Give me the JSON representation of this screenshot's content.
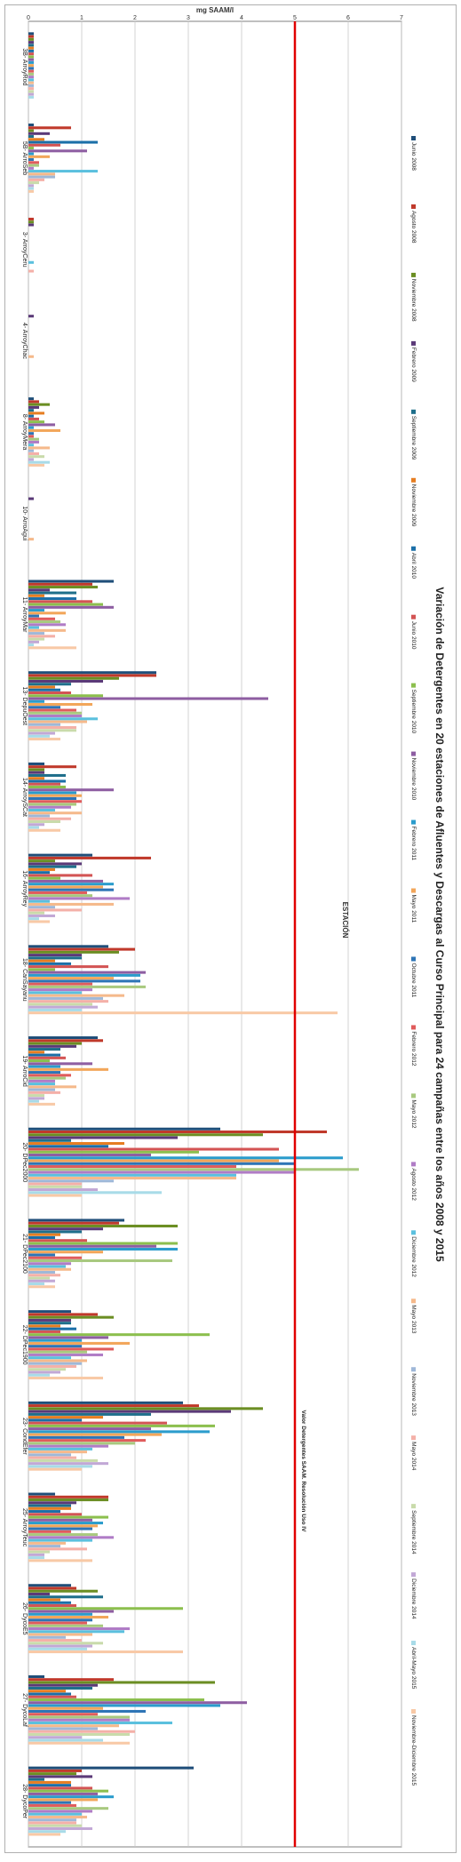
{
  "chart_data": {
    "type": "bar",
    "orientation": "horizontal",
    "title": "Variación de Detergentes en 20 estaciones de Afluentes y Descargas al Curso Principal para 24 campañas entre los años 2008 y 2015",
    "xlabel": "mg SAAM/l",
    "ylabel": "ESTACIÓN",
    "xlim": [
      0,
      7
    ],
    "xticks": [
      0,
      1,
      2,
      3,
      4,
      5,
      6,
      7
    ],
    "grid": true,
    "legend_position": "right",
    "reference_line": {
      "value": 5,
      "label": "Valor Detergentes SAAM. Resolución Uso IV",
      "color": "#e00000"
    },
    "categories": [
      "3B- ArroyRod",
      "5B- ArroSeb",
      "3- ArroyCeru",
      "4- ArroyChac",
      "8- ArroyMera",
      "10- ArroAgui",
      "11- ArroyMar",
      "13- DepuOest",
      "14- ArroySCat",
      "16- ArroyRey",
      "18- CanSayanu",
      "19- ArroCid",
      "20- DPec2000",
      "21- DPec2100",
      "22- DPec1900",
      "23- CondEfer",
      "25- ArroyTeuc",
      "26- DycoE5",
      "27- DycoLaf",
      "28- DycoPer"
    ],
    "series": [
      {
        "name": "Junio 2008",
        "color": "#1f4e79",
        "values": [
          0.1,
          0.1,
          0.0,
          0.0,
          0.1,
          0.0,
          1.6,
          2.4,
          0.3,
          1.2,
          1.5,
          1.3,
          3.6,
          1.8,
          0.8,
          2.9,
          0.5,
          0.8,
          0.3,
          3.1
        ]
      },
      {
        "name": "Agosto 2008",
        "color": "#c0392b",
        "values": [
          0.1,
          0.8,
          0.1,
          0.0,
          0.2,
          0.0,
          1.2,
          2.4,
          0.9,
          2.3,
          2.0,
          1.4,
          5.6,
          1.7,
          1.3,
          3.2,
          1.5,
          0.9,
          1.6,
          1.0
        ]
      },
      {
        "name": "Noviembre 2008",
        "color": "#6b8e23",
        "values": [
          0.1,
          0.1,
          0.1,
          0.0,
          0.4,
          0.0,
          1.3,
          1.7,
          0.3,
          0.5,
          1.7,
          1.0,
          4.4,
          2.8,
          1.6,
          4.4,
          1.5,
          1.3,
          3.5,
          0.9
        ]
      },
      {
        "name": "Febrero 2009",
        "color": "#5b3a78",
        "values": [
          0.1,
          0.4,
          0.1,
          0.1,
          0.2,
          0.1,
          0.4,
          1.4,
          0.3,
          1.0,
          1.0,
          0.9,
          2.8,
          1.4,
          0.8,
          3.8,
          0.9,
          0.4,
          1.3,
          1.2
        ]
      },
      {
        "name": "Septiembre 2009",
        "color": "#1f6f8b",
        "values": [
          0.1,
          0.1,
          0.0,
          0.0,
          0.1,
          0.0,
          0.9,
          0.8,
          0.7,
          0.9,
          1.0,
          0.6,
          0.8,
          1.0,
          0.8,
          2.3,
          0.8,
          1.4,
          1.2,
          0.3
        ]
      },
      {
        "name": "Noviembre 2009",
        "color": "#e67e22",
        "values": [
          0.1,
          0.3,
          0.0,
          0.0,
          0.3,
          0.0,
          0.3,
          0.5,
          0.3,
          0.5,
          0.5,
          0.3,
          1.8,
          0.6,
          0.6,
          1.4,
          0.8,
          0.6,
          0.7,
          0.8
        ]
      },
      {
        "name": "Abril 2010",
        "color": "#1b6fa8",
        "values": [
          0.1,
          1.3,
          0.0,
          0.0,
          0.1,
          0.0,
          0.9,
          0.6,
          0.7,
          0.4,
          0.8,
          0.6,
          1.5,
          0.5,
          0.9,
          1.0,
          0.6,
          0.8,
          0.8,
          0.8
        ]
      },
      {
        "name": "Junio 2010",
        "color": "#d35454",
        "values": [
          0.1,
          0.6,
          0.0,
          0.0,
          0.2,
          0.0,
          1.2,
          0.8,
          0.6,
          1.2,
          1.5,
          0.7,
          4.7,
          1.1,
          0.6,
          2.6,
          1.0,
          0.9,
          0.9,
          1.2
        ]
      },
      {
        "name": "Septiembre 2010",
        "color": "#8cbf4e",
        "values": [
          0.1,
          0.1,
          0.0,
          0.0,
          0.3,
          0.0,
          1.4,
          1.4,
          0.7,
          0.6,
          0.5,
          0.4,
          3.2,
          2.8,
          3.4,
          3.5,
          1.5,
          2.9,
          3.3,
          1.5
        ]
      },
      {
        "name": "Noviembre 2010",
        "color": "#8e5ea2",
        "values": [
          0.1,
          1.1,
          0.0,
          0.0,
          0.5,
          0.0,
          1.6,
          4.5,
          1.6,
          1.4,
          2.2,
          1.2,
          2.3,
          2.4,
          1.5,
          2.3,
          1.2,
          1.6,
          4.1,
          1.3
        ]
      },
      {
        "name": "Febrero 2011",
        "color": "#2b9ccc",
        "values": [
          0.1,
          0.1,
          0.0,
          0.0,
          0.1,
          0.0,
          0.3,
          0.3,
          0.9,
          1.6,
          2.1,
          0.6,
          5.9,
          2.8,
          1.0,
          3.4,
          1.4,
          1.2,
          3.6,
          1.6
        ]
      },
      {
        "name": "Mayo 2011",
        "color": "#f2a65a",
        "values": [
          0.1,
          0.4,
          0.0,
          0.0,
          0.6,
          0.0,
          0.7,
          1.2,
          1.0,
          1.4,
          1.6,
          1.5,
          4.7,
          1.4,
          1.9,
          2.5,
          1.3,
          1.5,
          1.4,
          1.3
        ]
      },
      {
        "name": "Octubre 2011",
        "color": "#2e75b6",
        "values": [
          0.1,
          0.1,
          0.0,
          0.0,
          0.1,
          0.0,
          0.2,
          0.6,
          0.9,
          1.6,
          2.1,
          0.6,
          5.0,
          0.5,
          1.0,
          1.8,
          1.2,
          1.2,
          2.2,
          0.8
        ]
      },
      {
        "name": "Febrero 2012",
        "color": "#e05c5c",
        "values": [
          0.1,
          0.2,
          0.0,
          0.0,
          0.1,
          0.0,
          0.5,
          0.9,
          1.0,
          1.1,
          1.2,
          0.8,
          3.9,
          1.0,
          1.6,
          2.2,
          0.8,
          1.1,
          1.3,
          0.9
        ]
      },
      {
        "name": "Mayo 2012",
        "color": "#a8c97f",
        "values": [
          0.1,
          0.2,
          0.0,
          0.0,
          0.2,
          0.0,
          0.6,
          1.0,
          0.9,
          1.2,
          2.2,
          0.7,
          6.2,
          2.7,
          1.1,
          2.0,
          1.3,
          1.4,
          1.9,
          1.5
        ]
      },
      {
        "name": "Agosto 2012",
        "color": "#b07cc6",
        "values": [
          0.1,
          0.1,
          0.0,
          0.0,
          0.2,
          0.0,
          0.7,
          1.0,
          0.8,
          1.9,
          1.2,
          0.5,
          5.0,
          0.8,
          1.4,
          1.5,
          1.6,
          1.9,
          1.9,
          1.2
        ]
      },
      {
        "name": "Diciembre 2012",
        "color": "#5bc0de",
        "values": [
          0.1,
          1.3,
          0.1,
          0.0,
          0.1,
          0.0,
          0.2,
          1.3,
          0.5,
          0.4,
          1.0,
          0.5,
          3.9,
          0.7,
          0.8,
          1.2,
          1.2,
          1.8,
          2.7,
          1.0
        ]
      },
      {
        "name": "Mayo 2013",
        "color": "#f5b98b",
        "values": [
          0.1,
          0.5,
          0.0,
          0.1,
          0.4,
          0.1,
          0.7,
          1.1,
          1.0,
          1.6,
          1.8,
          0.9,
          3.9,
          0.8,
          1.1,
          1.1,
          0.7,
          1.2,
          1.7,
          1.1
        ]
      },
      {
        "name": "Noviembre 2013",
        "color": "#9fb8d8",
        "values": [
          0.1,
          0.5,
          0.0,
          0.0,
          0.1,
          0.0,
          0.3,
          0.6,
          0.4,
          0.5,
          1.4,
          0.5,
          1.6,
          0.5,
          1.0,
          0.8,
          0.6,
          0.7,
          1.3,
          0.9
        ]
      },
      {
        "name": "Mayo 2014",
        "color": "#f4b0a8",
        "values": [
          0.1,
          0.3,
          0.1,
          0.0,
          0.2,
          0.0,
          0.5,
          0.9,
          0.8,
          1.0,
          1.5,
          0.6,
          1.0,
          0.6,
          0.9,
          0.9,
          1.1,
          1.0,
          2.0,
          0.9
        ]
      },
      {
        "name": "Septiembre 2014",
        "color": "#c9dbab",
        "values": [
          0.1,
          0.2,
          0.0,
          0.0,
          0.3,
          0.0,
          0.3,
          0.9,
          0.6,
          0.3,
          1.2,
          0.3,
          1.0,
          0.4,
          0.7,
          1.3,
          0.4,
          1.4,
          1.9,
          1.0
        ]
      },
      {
        "name": "Diciembre 2014",
        "color": "#c2a8d6",
        "values": [
          0.1,
          0.1,
          0.0,
          0.0,
          0.1,
          0.0,
          0.2,
          0.5,
          0.3,
          0.5,
          1.3,
          0.3,
          1.3,
          0.5,
          0.6,
          1.5,
          0.3,
          1.2,
          1.0,
          1.2
        ]
      },
      {
        "name": "Abril-Mayo 2015",
        "color": "#a8dbe8",
        "values": [
          0.1,
          0.1,
          0.0,
          0.0,
          0.4,
          0.0,
          0.1,
          0.4,
          0.2,
          0.2,
          1.0,
          0.2,
          2.5,
          0.3,
          0.4,
          1.2,
          0.3,
          1.1,
          1.4,
          0.7
        ]
      },
      {
        "name": "Noviembre-Diciembre 2015",
        "color": "#f8c9a6",
        "values": [
          0.0,
          0.1,
          0.0,
          0.0,
          0.3,
          0.0,
          0.9,
          0.6,
          0.6,
          0.4,
          5.8,
          0.5,
          1.0,
          0.5,
          1.4,
          1.0,
          1.2,
          2.9,
          1.9,
          0.6
        ]
      }
    ]
  }
}
